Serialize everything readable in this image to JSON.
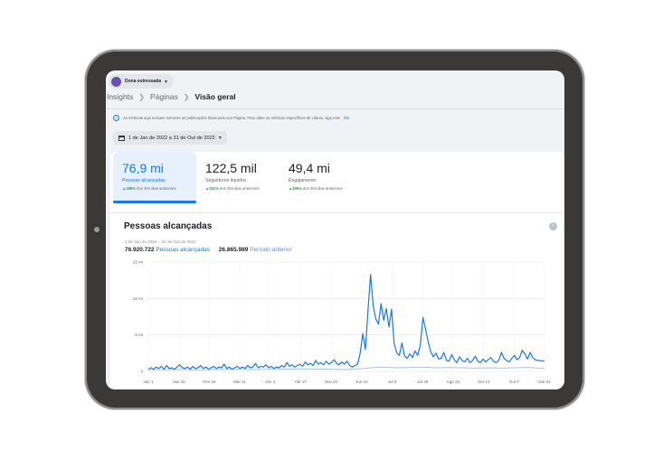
{
  "account": {
    "name": "Dona estressada"
  },
  "breadcrumb": {
    "items": [
      "Insights",
      "Páginas",
      "Visão geral"
    ]
  },
  "notice": {
    "text": "As métricas aqui incluem somente as publicações feitas pela sua Página. Para obter as métricas específicas de vídeos, siga este",
    "link": "link."
  },
  "date_filter": {
    "label": "1 de Jan de 2022 a 31 de Out de 2022"
  },
  "metrics": [
    {
      "value": "76,9 mi",
      "label": "Pessoas alcançadas",
      "change": "▲186%",
      "change_text": "dos 304 dias anteriores"
    },
    {
      "value": "122,5 mil",
      "label": "Seguidores líquidos",
      "change": "▲261%",
      "change_text": "dos 304 dias anteriores"
    },
    {
      "value": "49,4 mi",
      "label": "Engajamento",
      "change": "▲496%",
      "change_text": "dos 304 dias anteriores"
    }
  ],
  "section": {
    "title": "Pessoas alcançadas",
    "range": "1 de Jan de 2022 – 31 de Out de 2022",
    "total_current": "76.920.722",
    "label_current": "Pessoas alcançadas",
    "total_previous": "26.865.989",
    "label_previous": "Período anterior"
  },
  "colors": {
    "accent": "#1877f2",
    "previous": "#a7c4ec",
    "positive": "#2a9d4e"
  },
  "chart_data": {
    "type": "line",
    "x_ticks": [
      "Jan 1",
      "Jan 24",
      "Fev 16",
      "Mar 11",
      "Abr 4",
      "Abr 27",
      "Mai 20",
      "Jun 13",
      "Jul 6",
      "Jul 29",
      "Ago 22",
      "Set 14",
      "Out 7",
      "Out 31"
    ],
    "y_ticks": [
      "15 mi",
      "10 mi",
      "5 mi",
      "0"
    ],
    "ylim": [
      0,
      15
    ],
    "unit": "mi",
    "series": [
      {
        "name": "Pessoas alcançadas",
        "color": "#1877f2",
        "points": [
          [
            0,
            0.3
          ],
          [
            2,
            0.5
          ],
          [
            4,
            0.3
          ],
          [
            6,
            0.6
          ],
          [
            8,
            0.4
          ],
          [
            10,
            0.7
          ],
          [
            12,
            0.3
          ],
          [
            14,
            0.8
          ],
          [
            16,
            0.4
          ],
          [
            18,
            0.5
          ],
          [
            20,
            0.3
          ],
          [
            22,
            0.6
          ],
          [
            24,
            0.9
          ],
          [
            26,
            0.5
          ],
          [
            28,
            0.4
          ],
          [
            30,
            0.6
          ],
          [
            32,
            0.3
          ],
          [
            34,
            0.7
          ],
          [
            36,
            0.4
          ],
          [
            38,
            0.5
          ],
          [
            40,
            0.8
          ],
          [
            42,
            0.4
          ],
          [
            44,
            0.6
          ],
          [
            46,
            0.3
          ],
          [
            48,
            0.5
          ],
          [
            50,
            0.7
          ],
          [
            52,
            0.4
          ],
          [
            54,
            0.6
          ],
          [
            56,
            0.5
          ],
          [
            58,
            1.0
          ],
          [
            60,
            0.4
          ],
          [
            62,
            0.6
          ],
          [
            64,
            0.3
          ],
          [
            66,
            0.5
          ],
          [
            68,
            0.7
          ],
          [
            70,
            0.4
          ],
          [
            72,
            0.6
          ],
          [
            74,
            0.4
          ],
          [
            76,
            0.8
          ],
          [
            78,
            0.5
          ],
          [
            80,
            0.6
          ],
          [
            82,
            1.1
          ],
          [
            84,
            0.5
          ],
          [
            86,
            0.7
          ],
          [
            88,
            0.6
          ],
          [
            90,
            0.9
          ],
          [
            92,
            0.5
          ],
          [
            94,
            0.7
          ],
          [
            96,
            0.4
          ],
          [
            98,
            0.6
          ],
          [
            100,
            0.5
          ],
          [
            102,
            0.8
          ],
          [
            104,
            0.6
          ],
          [
            106,
            1.2
          ],
          [
            108,
            0.7
          ],
          [
            110,
            0.9
          ],
          [
            112,
            0.6
          ],
          [
            114,
            0.8
          ],
          [
            116,
            1.0
          ],
          [
            118,
            0.7
          ],
          [
            120,
            1.3
          ],
          [
            122,
            0.9
          ],
          [
            124,
            1.1
          ],
          [
            126,
            0.8
          ],
          [
            128,
            1.5
          ],
          [
            130,
            1.0
          ],
          [
            132,
            1.2
          ],
          [
            134,
            0.9
          ],
          [
            136,
            1.4
          ],
          [
            138,
            1.0
          ],
          [
            140,
            1.2
          ],
          [
            142,
            1.6
          ],
          [
            144,
            1.1
          ],
          [
            146,
            0.9
          ],
          [
            148,
            1.3
          ],
          [
            150,
            1.0
          ],
          [
            152,
            1.4
          ],
          [
            154,
            0.8
          ],
          [
            156,
            0.6
          ],
          [
            158,
            0.8
          ],
          [
            160,
            1.0
          ],
          [
            162,
            2.5
          ],
          [
            164,
            5.2
          ],
          [
            166,
            3.0
          ],
          [
            168,
            8.5
          ],
          [
            170,
            13.3
          ],
          [
            172,
            9.0
          ],
          [
            174,
            7.2
          ],
          [
            176,
            6.5
          ],
          [
            178,
            9.3
          ],
          [
            180,
            7.0
          ],
          [
            182,
            8.6
          ],
          [
            184,
            6.1
          ],
          [
            186,
            8.5
          ],
          [
            188,
            3.8
          ],
          [
            190,
            2.5
          ],
          [
            192,
            2.2
          ],
          [
            194,
            3.9
          ],
          [
            196,
            2.1
          ],
          [
            198,
            1.8
          ],
          [
            200,
            2.4
          ],
          [
            202,
            1.9
          ],
          [
            204,
            2.8
          ],
          [
            206,
            2.2
          ],
          [
            208,
            3.6
          ],
          [
            210,
            7.4
          ],
          [
            212,
            5.8
          ],
          [
            214,
            4.1
          ],
          [
            216,
            2.7
          ],
          [
            218,
            2.0
          ],
          [
            220,
            2.5
          ],
          [
            222,
            1.7
          ],
          [
            224,
            1.8
          ],
          [
            226,
            2.6
          ],
          [
            228,
            1.5
          ],
          [
            230,
            1.4
          ],
          [
            232,
            2.3
          ],
          [
            234,
            1.6
          ],
          [
            236,
            1.2
          ],
          [
            238,
            2.0
          ],
          [
            240,
            1.5
          ],
          [
            242,
            1.3
          ],
          [
            244,
            1.8
          ],
          [
            246,
            1.2
          ],
          [
            248,
            1.5
          ],
          [
            250,
            2.1
          ],
          [
            252,
            1.4
          ],
          [
            254,
            1.2
          ],
          [
            256,
            1.7
          ],
          [
            258,
            1.3
          ],
          [
            260,
            1.6
          ],
          [
            262,
            1.9
          ],
          [
            264,
            1.4
          ],
          [
            266,
            1.2
          ],
          [
            268,
            1.5
          ],
          [
            270,
            2.6
          ],
          [
            272,
            1.8
          ],
          [
            274,
            1.5
          ],
          [
            276,
            1.3
          ],
          [
            278,
            1.8
          ],
          [
            280,
            2.2
          ],
          [
            282,
            1.6
          ],
          [
            284,
            1.9
          ],
          [
            286,
            2.9
          ],
          [
            288,
            2.4
          ],
          [
            290,
            1.7
          ],
          [
            292,
            2.6
          ],
          [
            294,
            1.9
          ],
          [
            296,
            1.6
          ],
          [
            298,
            1.5
          ],
          [
            303,
            1.4
          ]
        ]
      },
      {
        "name": "Período anterior",
        "color": "#a7c4ec",
        "points": [
          [
            0,
            0.2
          ],
          [
            20,
            0.25
          ],
          [
            40,
            0.2
          ],
          [
            60,
            0.3
          ],
          [
            80,
            0.25
          ],
          [
            100,
            0.3
          ],
          [
            120,
            0.35
          ],
          [
            140,
            0.3
          ],
          [
            150,
            0.25
          ],
          [
            160,
            0.35
          ],
          [
            170,
            0.5
          ],
          [
            180,
            0.6
          ],
          [
            190,
            0.5
          ],
          [
            200,
            0.55
          ],
          [
            210,
            0.6
          ],
          [
            220,
            0.5
          ],
          [
            230,
            0.55
          ],
          [
            240,
            0.5
          ],
          [
            250,
            0.45
          ],
          [
            260,
            0.5
          ],
          [
            270,
            0.45
          ],
          [
            280,
            0.5
          ],
          [
            290,
            0.55
          ],
          [
            303,
            0.4
          ]
        ]
      }
    ]
  }
}
